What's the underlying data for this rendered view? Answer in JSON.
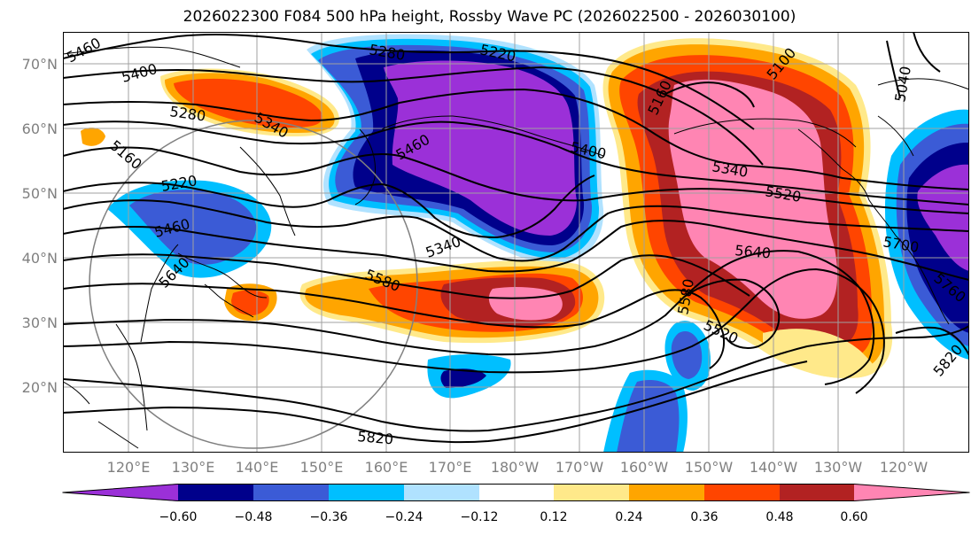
{
  "title": "2026022300 F084 500 hPa height, Rossby Wave PC (2026022500 - 2026030100)",
  "lat_labels": [
    "70°N",
    "60°N",
    "50°N",
    "40°N",
    "30°N",
    "20°N"
  ],
  "lon_labels": [
    "120°E",
    "130°E",
    "140°E",
    "150°E",
    "160°E",
    "170°E",
    "180°W",
    "170°W",
    "160°W",
    "150°W",
    "140°W",
    "130°W",
    "120°W"
  ],
  "contour_labels": [
    "5460",
    "5400",
    "5280",
    "5160",
    "5220",
    "5460",
    "5640",
    "5280",
    "5340",
    "5220",
    "5460",
    "5400",
    "5340",
    "5520",
    "5160",
    "5100",
    "5040",
    "5340",
    "5580",
    "5640",
    "5580",
    "5520",
    "5700",
    "5760",
    "5820",
    "5820"
  ],
  "colorbar": {
    "tick_labels": [
      "−0.60",
      "−0.48",
      "−0.36",
      "−0.24",
      "−0.12",
      "0.12",
      "0.24",
      "0.36",
      "0.48",
      "0.60"
    ],
    "colors": [
      "#9b30d8",
      "#00008b",
      "#3b5bd6",
      "#00bfff",
      "#b0e2ff",
      "#ffffff",
      "#ffe98a",
      "#ffa500",
      "#ff4500",
      "#b22222",
      "#ff85b3"
    ]
  },
  "colors": {
    "neg_strong": "#9b30d8",
    "neg_darkblue": "#00008b",
    "neg_blue": "#3b5bd6",
    "neg_sky": "#00bfff",
    "neg_light": "#b0e2ff",
    "pos_yellow": "#ffe98a",
    "pos_orange": "#ffa500",
    "pos_redorange": "#ff4500",
    "pos_firebrick": "#b22222",
    "pos_pink": "#ff85b3"
  }
}
